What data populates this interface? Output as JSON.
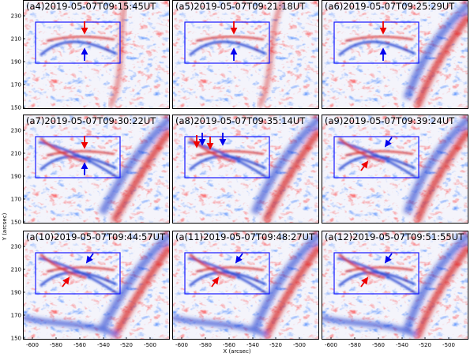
{
  "figure": {
    "xlabel": "X (arcsec)",
    "ylabel": "Y (arcsec)",
    "x_ticks": [
      "-600",
      "-580",
      "-560",
      "-540",
      "-520",
      "-500"
    ],
    "y_ticks": [
      "150",
      "170",
      "190",
      "210",
      "230"
    ],
    "colors": {
      "red": "#ee0000",
      "blue": "#0000ee",
      "box": "#1a1aff",
      "positive": "#d62020",
      "negative": "#2040d0"
    },
    "panels": [
      {
        "label": "(a4)2019-05-07T09:15:45UT",
        "arrows": [
          {
            "color": "red",
            "dir": "down"
          },
          {
            "color": "blue",
            "dir": "up"
          }
        ]
      },
      {
        "label": "(a5)2019-05-07T09:21:18UT",
        "arrows": [
          {
            "color": "red",
            "dir": "down"
          },
          {
            "color": "blue",
            "dir": "up"
          }
        ]
      },
      {
        "label": "(a6)2019-05-07T09:25:29UT",
        "arrows": [
          {
            "color": "red",
            "dir": "down"
          },
          {
            "color": "blue",
            "dir": "up"
          }
        ]
      },
      {
        "label": "(a7)2019-05-07T09:30:22UT",
        "arrows": [
          {
            "color": "red",
            "dir": "down"
          },
          {
            "color": "blue",
            "dir": "up"
          }
        ]
      },
      {
        "label": "(a8)2019-05-07T09:35:14UT",
        "arrows": [
          {
            "color": "red",
            "dir": "down"
          },
          {
            "color": "blue",
            "dir": "down"
          },
          {
            "color": "red",
            "dir": "down"
          },
          {
            "color": "blue",
            "dir": "down"
          }
        ]
      },
      {
        "label": "(a9)2019-05-07T09:39:24UT",
        "arrows": [
          {
            "color": "blue",
            "dir": "down-left"
          },
          {
            "color": "red",
            "dir": "up-right"
          }
        ]
      },
      {
        "label": "(a(10)2019-05-07T09:44:57UT",
        "arrows": [
          {
            "color": "blue",
            "dir": "down-left"
          },
          {
            "color": "red",
            "dir": "up-right"
          }
        ]
      },
      {
        "label": "(a(11)2019-05-07T09:48:27UT",
        "arrows": [
          {
            "color": "blue",
            "dir": "down-left"
          },
          {
            "color": "red",
            "dir": "up-right"
          }
        ]
      },
      {
        "label": "(a(12)2019-05-07T09:51:55UT",
        "arrows": [
          {
            "color": "blue",
            "dir": "down-left"
          },
          {
            "color": "red",
            "dir": "up-right"
          }
        ]
      }
    ]
  }
}
